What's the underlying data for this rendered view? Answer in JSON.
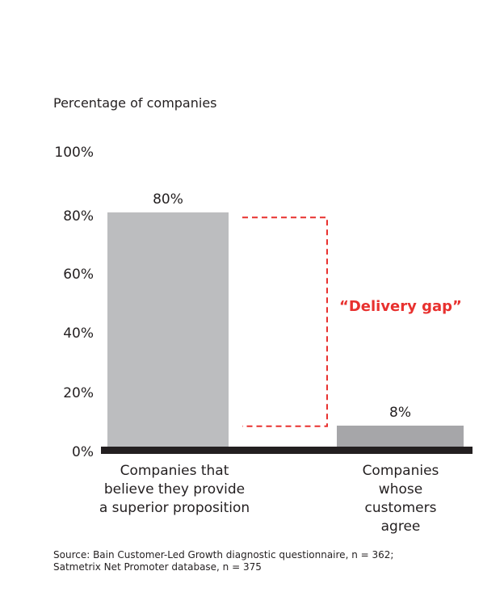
{
  "chart_data": {
    "type": "bar",
    "ylabel": "Percentage of companies",
    "ylim": [
      0,
      100
    ],
    "yticks": [
      "0%",
      "20%",
      "40%",
      "60%",
      "80%",
      "100%"
    ],
    "ytick_values": [
      0,
      20,
      40,
      60,
      80,
      100
    ],
    "grid": false,
    "categories": [
      "Companies that\nbelieve they provide\na superior proposition",
      "Companies whose\ncustomers agree"
    ],
    "values": [
      80,
      8
    ],
    "data_labels": [
      "80%",
      "8%"
    ],
    "bar_colors": [
      "#bcbdbf",
      "#a6a6a9"
    ],
    "annotation": {
      "text": "“Delivery gap”",
      "color": "#e8312f",
      "from": 8,
      "to": 80
    },
    "source": "Source: Bain Customer-Led Growth diagnostic questionnaire, n = 362;\nSatmetrix Net Promoter database, n = 375"
  }
}
